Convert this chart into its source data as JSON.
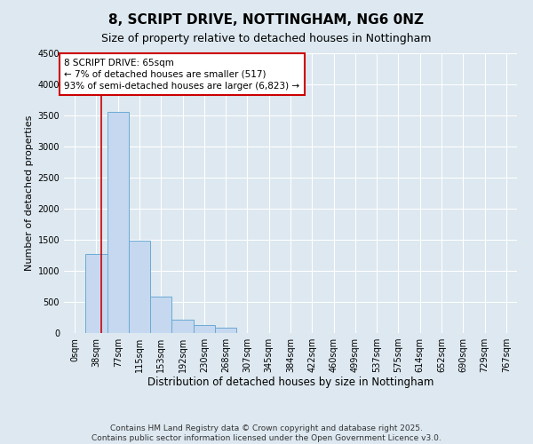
{
  "title": "8, SCRIPT DRIVE, NOTTINGHAM, NG6 0NZ",
  "subtitle": "Size of property relative to detached houses in Nottingham",
  "xlabel": "Distribution of detached houses by size in Nottingham",
  "ylabel": "Number of detached properties",
  "bar_color": "#c5d8ef",
  "bar_edge_color": "#6aaad4",
  "background_color": "#dde8f0",
  "grid_color": "#ffffff",
  "categories": [
    "0sqm",
    "38sqm",
    "77sqm",
    "115sqm",
    "153sqm",
    "192sqm",
    "230sqm",
    "268sqm",
    "307sqm",
    "345sqm",
    "384sqm",
    "422sqm",
    "460sqm",
    "499sqm",
    "537sqm",
    "575sqm",
    "614sqm",
    "652sqm",
    "690sqm",
    "729sqm",
    "767sqm"
  ],
  "values": [
    0,
    1270,
    3550,
    1480,
    590,
    215,
    130,
    80,
    0,
    0,
    0,
    0,
    0,
    0,
    0,
    0,
    0,
    0,
    0,
    0,
    0
  ],
  "ylim": [
    0,
    4500
  ],
  "yticks": [
    0,
    500,
    1000,
    1500,
    2000,
    2500,
    3000,
    3500,
    4000,
    4500
  ],
  "vline_x_index": 1.71,
  "annotation_text": "8 SCRIPT DRIVE: 65sqm\n← 7% of detached houses are smaller (517)\n93% of semi-detached houses are larger (6,823) →",
  "annotation_box_color": "#ffffff",
  "annotation_box_edge": "#cc0000",
  "vline_color": "#cc0000",
  "footer_text": "Contains HM Land Registry data © Crown copyright and database right 2025.\nContains public sector information licensed under the Open Government Licence v3.0.",
  "title_fontsize": 11,
  "subtitle_fontsize": 9,
  "xlabel_fontsize": 8.5,
  "ylabel_fontsize": 8,
  "tick_fontsize": 7,
  "annotation_fontsize": 7.5,
  "footer_fontsize": 6.5
}
